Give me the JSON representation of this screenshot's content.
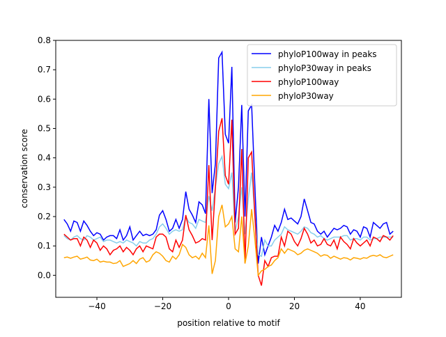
{
  "chart_data": {
    "type": "line",
    "title": "",
    "xlabel": "position relative to motif",
    "ylabel": "conservation score",
    "xlim": [
      -52.5,
      52.5
    ],
    "ylim": [
      -0.075,
      0.8
    ],
    "xticks": [
      -40,
      -20,
      0,
      20,
      40
    ],
    "xtick_labels": [
      "−40",
      "−20",
      "0",
      "20",
      "40"
    ],
    "yticks": [
      0.0,
      0.1,
      0.2,
      0.3,
      0.4,
      0.5,
      0.6,
      0.7,
      0.8
    ],
    "ytick_labels": [
      "0.0",
      "0.1",
      "0.2",
      "0.3",
      "0.4",
      "0.5",
      "0.6",
      "0.7",
      "0.8"
    ],
    "legend_position": "top-right",
    "x_start": -50,
    "series": [
      {
        "name": "phyloP100way in peaks",
        "color": "#0000ff",
        "values": [
          0.19,
          0.175,
          0.15,
          0.185,
          0.18,
          0.15,
          0.185,
          0.17,
          0.15,
          0.135,
          0.145,
          0.14,
          0.12,
          0.13,
          0.135,
          0.135,
          0.125,
          0.155,
          0.12,
          0.135,
          0.165,
          0.12,
          0.135,
          0.15,
          0.135,
          0.14,
          0.135,
          0.14,
          0.155,
          0.205,
          0.22,
          0.19,
          0.15,
          0.16,
          0.19,
          0.16,
          0.19,
          0.285,
          0.225,
          0.205,
          0.18,
          0.25,
          0.24,
          0.21,
          0.6,
          0.28,
          0.38,
          0.74,
          0.76,
          0.48,
          0.45,
          0.71,
          0.18,
          0.3,
          0.58,
          0.2,
          0.56,
          0.58,
          0.3,
          0.04,
          0.13,
          0.07,
          0.1,
          0.13,
          0.17,
          0.15,
          0.18,
          0.225,
          0.19,
          0.195,
          0.185,
          0.175,
          0.2,
          0.26,
          0.22,
          0.18,
          0.175,
          0.15,
          0.14,
          0.15,
          0.13,
          0.145,
          0.16,
          0.155,
          0.16,
          0.17,
          0.165,
          0.14,
          0.155,
          0.15,
          0.13,
          0.165,
          0.16,
          0.13,
          0.18,
          0.17,
          0.16,
          0.175,
          0.18,
          0.14,
          0.15
        ]
      },
      {
        "name": "phyloP30way in peaks",
        "color": "#87ceeb",
        "values": [
          0.135,
          0.125,
          0.12,
          0.13,
          0.135,
          0.125,
          0.12,
          0.135,
          0.13,
          0.12,
          0.125,
          0.13,
          0.115,
          0.12,
          0.12,
          0.115,
          0.11,
          0.115,
          0.11,
          0.12,
          0.115,
          0.11,
          0.1,
          0.115,
          0.11,
          0.11,
          0.12,
          0.125,
          0.14,
          0.165,
          0.175,
          0.16,
          0.14,
          0.15,
          0.155,
          0.15,
          0.155,
          0.2,
          0.18,
          0.175,
          0.16,
          0.19,
          0.185,
          0.18,
          0.27,
          0.22,
          0.3,
          0.38,
          0.405,
          0.31,
          0.295,
          0.35,
          0.15,
          0.2,
          0.3,
          0.14,
          0.26,
          0.35,
          0.2,
          0.07,
          0.065,
          0.12,
          0.1,
          0.1,
          0.12,
          0.13,
          0.14,
          0.165,
          0.155,
          0.15,
          0.145,
          0.14,
          0.15,
          0.165,
          0.16,
          0.145,
          0.14,
          0.13,
          0.135,
          0.125,
          0.12,
          0.125,
          0.13,
          0.13,
          0.13,
          0.135,
          0.135,
          0.12,
          0.125,
          0.125,
          0.12,
          0.13,
          0.13,
          0.12,
          0.125,
          0.125,
          0.13,
          0.13,
          0.13,
          0.13,
          0.13
        ]
      },
      {
        "name": "phyloP100way",
        "color": "#ff0000",
        "values": [
          0.14,
          0.13,
          0.12,
          0.125,
          0.125,
          0.1,
          0.13,
          0.12,
          0.095,
          0.12,
          0.11,
          0.085,
          0.1,
          0.09,
          0.07,
          0.085,
          0.09,
          0.1,
          0.08,
          0.095,
          0.085,
          0.07,
          0.09,
          0.1,
          0.08,
          0.1,
          0.095,
          0.09,
          0.13,
          0.14,
          0.14,
          0.13,
          0.09,
          0.08,
          0.12,
          0.095,
          0.12,
          0.205,
          0.155,
          0.135,
          0.11,
          0.115,
          0.125,
          0.12,
          0.375,
          0.12,
          0.3,
          0.49,
          0.535,
          0.34,
          0.31,
          0.53,
          0.14,
          0.16,
          0.43,
          0.04,
          0.4,
          0.42,
          0.2,
          0.0,
          -0.035,
          0.05,
          0.03,
          0.06,
          0.065,
          0.065,
          0.13,
          0.1,
          0.15,
          0.14,
          0.115,
          0.1,
          0.125,
          0.16,
          0.14,
          0.11,
          0.12,
          0.1,
          0.105,
          0.125,
          0.105,
          0.1,
          0.12,
          0.09,
          0.13,
          0.115,
          0.105,
          0.09,
          0.125,
          0.11,
          0.1,
          0.11,
          0.12,
          0.1,
          0.13,
          0.125,
          0.115,
          0.135,
          0.13,
          0.12,
          0.135
        ]
      },
      {
        "name": "phyloP30way",
        "color": "#ffa500",
        "values": [
          0.06,
          0.062,
          0.058,
          0.062,
          0.065,
          0.055,
          0.058,
          0.062,
          0.052,
          0.05,
          0.055,
          0.045,
          0.048,
          0.045,
          0.045,
          0.04,
          0.042,
          0.05,
          0.03,
          0.035,
          0.04,
          0.05,
          0.04,
          0.055,
          0.06,
          0.045,
          0.05,
          0.07,
          0.08,
          0.075,
          0.065,
          0.05,
          0.045,
          0.065,
          0.055,
          0.07,
          0.105,
          0.095,
          0.07,
          0.06,
          0.065,
          0.055,
          0.075,
          0.06,
          0.17,
          0.005,
          0.05,
          0.2,
          0.24,
          0.165,
          0.175,
          0.2,
          0.09,
          0.08,
          0.2,
          0.04,
          0.1,
          0.225,
          0.12,
          0.0,
          0.015,
          0.02,
          0.03,
          0.035,
          0.05,
          0.06,
          0.09,
          0.075,
          0.09,
          0.085,
          0.08,
          0.07,
          0.075,
          0.085,
          0.09,
          0.085,
          0.08,
          0.075,
          0.065,
          0.07,
          0.068,
          0.058,
          0.065,
          0.06,
          0.055,
          0.06,
          0.058,
          0.052,
          0.06,
          0.058,
          0.055,
          0.06,
          0.058,
          0.065,
          0.068,
          0.065,
          0.07,
          0.062,
          0.06,
          0.065,
          0.07
        ]
      }
    ]
  }
}
